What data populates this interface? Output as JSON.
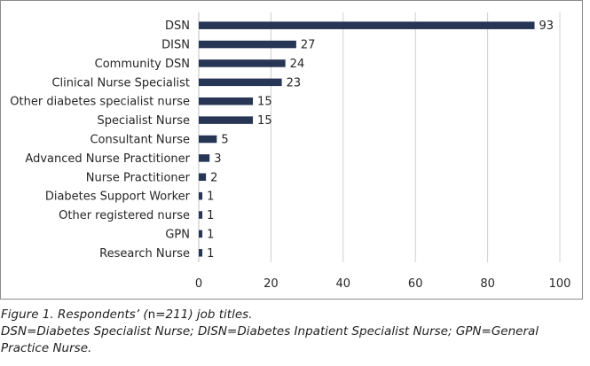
{
  "chart_data": {
    "type": "bar",
    "orientation": "horizontal",
    "categories": [
      "DSN",
      "DISN",
      "Community DSN",
      "Clinical Nurse Specialist",
      "Other diabetes specialist nurse",
      "Specialist Nurse",
      "Consultant Nurse",
      "Advanced Nurse Practitioner",
      "Nurse Practitioner",
      "Diabetes Support Worker",
      "Other registered nurse",
      "GPN",
      "Research Nurse"
    ],
    "values": [
      93,
      27,
      24,
      23,
      15,
      15,
      5,
      3,
      2,
      1,
      1,
      1,
      1
    ],
    "data_labels": [
      "93",
      "27",
      "24",
      "23",
      "15",
      "15",
      "5",
      "3",
      "2",
      "1",
      "1",
      "1",
      "1"
    ],
    "xlim": [
      0,
      100
    ],
    "xticks": [
      0,
      20,
      40,
      60,
      80,
      100
    ],
    "xtick_labels": [
      "0",
      "20",
      "40",
      "60",
      "80",
      "100"
    ],
    "grid": "vertical",
    "legend": "none",
    "bar_color": "#283655",
    "grid_color": "#d0d0d0"
  },
  "caption": {
    "line1_a": "Figure 1. Respondents’ (",
    "line1_b": "n",
    "line1_c": "=211) job titles.",
    "line2": "DSN=Diabetes Specialist Nurse; DISN=Diabetes Inpatient Specialist Nurse; GPN=General",
    "line3": "Practice Nurse."
  }
}
